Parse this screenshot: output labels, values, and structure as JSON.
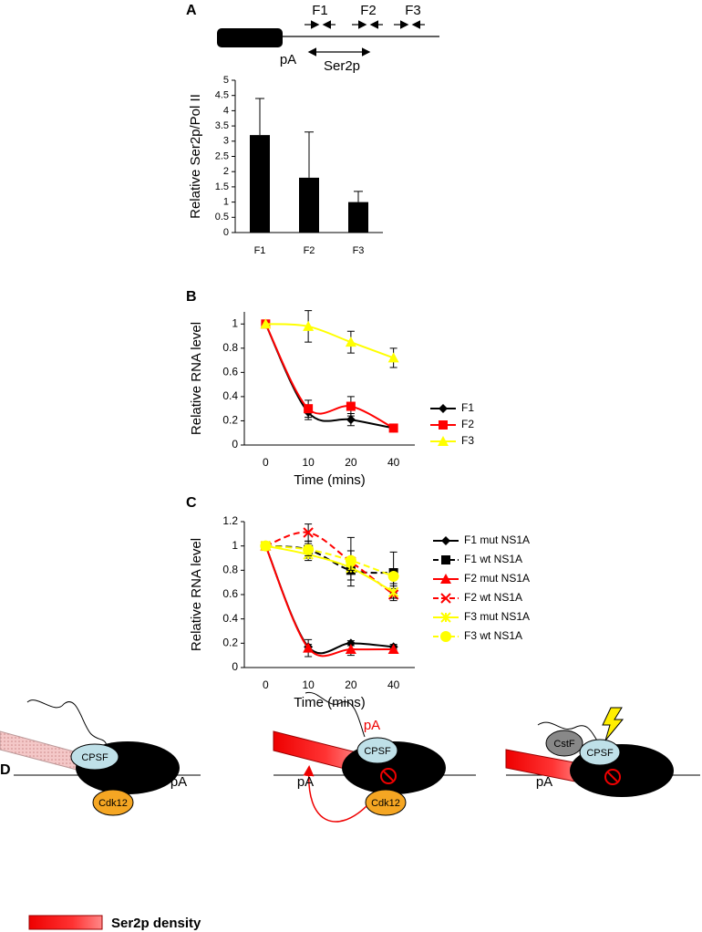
{
  "panel_labels": [
    "A",
    "B",
    "C",
    "D"
  ],
  "gene_map": {
    "primers": [
      "F1",
      "F2",
      "F3"
    ],
    "pA": "pA",
    "region": "Ser2p"
  },
  "chart_data": [
    {
      "type": "bar",
      "y_label": "Relative Ser2p/Pol II",
      "categories": [
        "F1",
        "F2",
        "F3"
      ],
      "values": [
        3.2,
        1.8,
        1.0
      ],
      "errors": [
        1.2,
        1.5,
        0.35
      ],
      "color": "#000000",
      "ylim": [
        0,
        5
      ],
      "yticks": [
        0,
        0.5,
        1,
        1.5,
        2,
        2.5,
        3,
        3.5,
        4,
        4.5,
        5
      ]
    },
    {
      "type": "line",
      "x_label": "Time (mins)",
      "y_label": "Relative RNA level",
      "categories": [
        "0",
        "10",
        "20",
        "40"
      ],
      "ylim": [
        0,
        1.1
      ],
      "yticks": [
        0,
        0.2,
        0.4,
        0.6,
        0.8,
        1
      ],
      "legend": "right",
      "series": [
        {
          "name": "F1",
          "color": "#000000",
          "marker": "diamond",
          "dashed": false,
          "values": [
            1,
            0.27,
            0.21,
            0.14
          ],
          "errors": [
            null,
            0.06,
            0.05,
            0.02
          ]
        },
        {
          "name": "F2",
          "color": "#ff0000",
          "marker": "square",
          "dashed": false,
          "values": [
            1,
            0.3,
            0.32,
            0.14
          ],
          "errors": [
            null,
            0.07,
            0.08,
            0.02
          ]
        },
        {
          "name": "F3",
          "color": "#ffff00",
          "marker": "triangle",
          "dashed": false,
          "values": [
            1,
            0.98,
            0.85,
            0.72
          ],
          "errors": [
            null,
            0.13,
            0.09,
            0.08
          ]
        }
      ]
    },
    {
      "type": "line",
      "x_label": "Time (mins)",
      "y_label": "Relative RNA level",
      "categories": [
        "0",
        "10",
        "20",
        "40"
      ],
      "ylim": [
        0,
        1.2
      ],
      "yticks": [
        0,
        0.2,
        0.4,
        0.6,
        0.8,
        1,
        1.2
      ],
      "legend": "right",
      "series": [
        {
          "name": "F1 mut NS1A",
          "color": "#000000",
          "marker": "diamond",
          "dashed": false,
          "values": [
            1,
            0.17,
            0.2,
            0.17
          ],
          "errors": [
            null,
            0.02,
            0.02,
            0.02
          ]
        },
        {
          "name": "F1 wt NS1A",
          "color": "#000000",
          "marker": "square",
          "dashed": true,
          "values": [
            1,
            0.97,
            0.8,
            0.78
          ],
          "errors": [
            null,
            0.07,
            0.08,
            0.17
          ]
        },
        {
          "name": "F2 mut NS1A",
          "color": "#ff0000",
          "marker": "triangle",
          "dashed": false,
          "values": [
            1,
            0.16,
            0.15,
            0.15
          ],
          "errors": [
            null,
            0.07,
            0.05,
            0.03
          ]
        },
        {
          "name": "F2 wt NS1A",
          "color": "#ff0000",
          "marker": "x",
          "dashed": true,
          "values": [
            1,
            1.11,
            0.87,
            0.6
          ],
          "errors": [
            null,
            0.07,
            0.2,
            0.05
          ]
        },
        {
          "name": "F3 mut NS1A",
          "color": "#ffff00",
          "marker": "asterisk",
          "dashed": false,
          "values": [
            1,
            0.93,
            0.82,
            0.62
          ],
          "errors": [
            null,
            0.05,
            0.05,
            0.05
          ]
        },
        {
          "name": "F3 wt NS1A",
          "color": "#ffff00",
          "marker": "circle",
          "dashed": true,
          "values": [
            1,
            0.97,
            0.88,
            0.75
          ],
          "errors": [
            null,
            0.05,
            0.08,
            0.06
          ]
        }
      ]
    }
  ],
  "diagram": {
    "panel1": {
      "cpsf": "CPSF",
      "cdk12": "Cdk12",
      "pa": "pA"
    },
    "panel2": {
      "pa_red": "pA",
      "cpsf": "CPSF",
      "pa": "pA",
      "cdk12": "Cdk12"
    },
    "panel3": {
      "cstf": "CstF",
      "cpsf": "CPSF",
      "pa": "pA"
    },
    "legend": "Ser2p density"
  }
}
